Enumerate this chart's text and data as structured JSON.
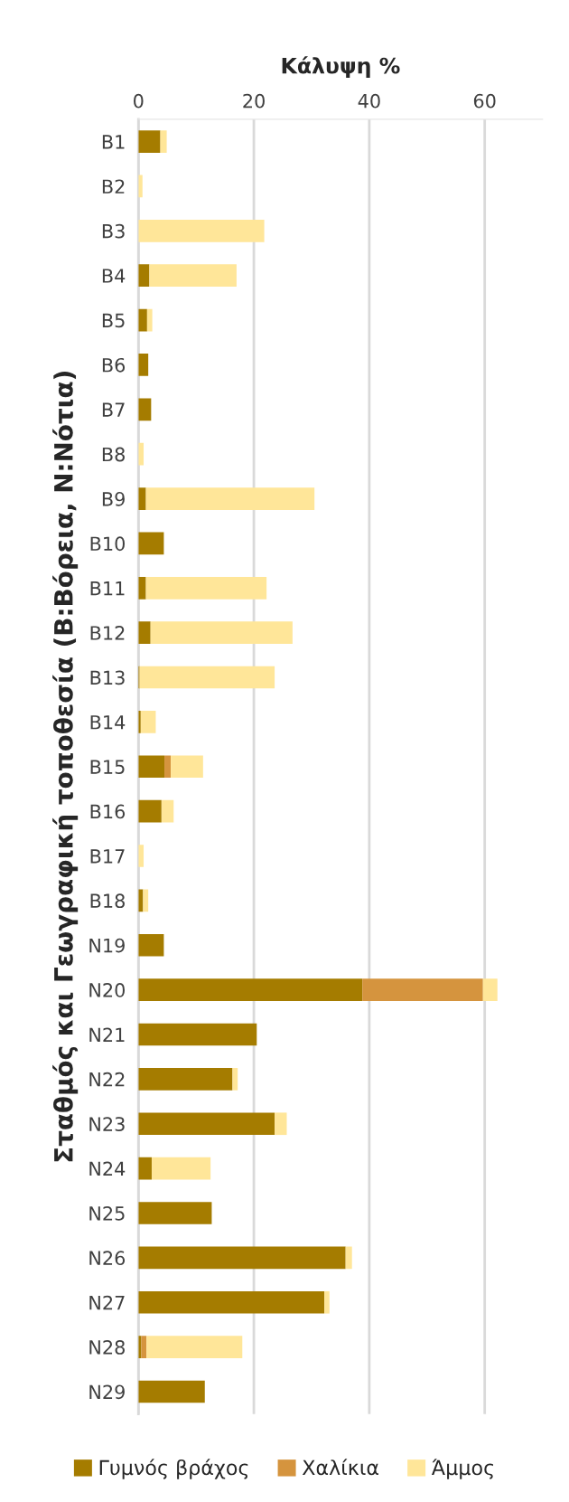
{
  "chart_data": {
    "type": "bar",
    "orientation": "horizontal",
    "stacked": true,
    "xlabel": "Κάλυψη %",
    "ylabel": "Σταθμός και Γεωγραφική τοποθεσία (B:Βόρεια, N:Νότια)",
    "categories": [
      "B1",
      "B2",
      "B3",
      "B4",
      "B5",
      "B6",
      "B7",
      "B8",
      "B9",
      "B10",
      "B11",
      "B12",
      "B13",
      "B14",
      "B15",
      "B16",
      "B17",
      "B18",
      "N19",
      "N20",
      "N21",
      "N22",
      "N23",
      "N24",
      "N25",
      "N26",
      "N27",
      "N28",
      "N29"
    ],
    "series": [
      {
        "name": "Γυμνός βράχος",
        "color": "#a57c00",
        "values": [
          3.8,
          null,
          null,
          1.9,
          1.5,
          1.7,
          2.2,
          null,
          1.3,
          4.4,
          1.3,
          2.1,
          0.2,
          0.4,
          4.5,
          4.0,
          null,
          0.8,
          4.4,
          38.8,
          20.5,
          16.3,
          23.6,
          2.3,
          12.7,
          35.9,
          32.2,
          0.5,
          11.5
        ]
      },
      {
        "name": "Χαλίκια",
        "color": "#d5943e",
        "values": [
          null,
          null,
          null,
          null,
          null,
          null,
          null,
          null,
          null,
          null,
          null,
          null,
          null,
          null,
          1.1,
          null,
          null,
          null,
          null,
          20.9,
          null,
          null,
          null,
          null,
          null,
          null,
          null,
          0.9,
          null
        ]
      },
      {
        "name": "Άμμος",
        "color": "#ffe699",
        "values": [
          1.1,
          0.7,
          21.8,
          15.1,
          0.9,
          null,
          null,
          0.9,
          29.2,
          null,
          20.9,
          24.6,
          23.4,
          2.6,
          5.6,
          2.1,
          0.9,
          0.9,
          null,
          2.5,
          null,
          0.9,
          2.1,
          10.2,
          null,
          1.1,
          0.9,
          16.6,
          null
        ]
      }
    ],
    "xlim": [
      0,
      70
    ],
    "xticks": [
      0,
      20,
      40,
      60
    ],
    "grid": "x",
    "legend": "bottom"
  }
}
